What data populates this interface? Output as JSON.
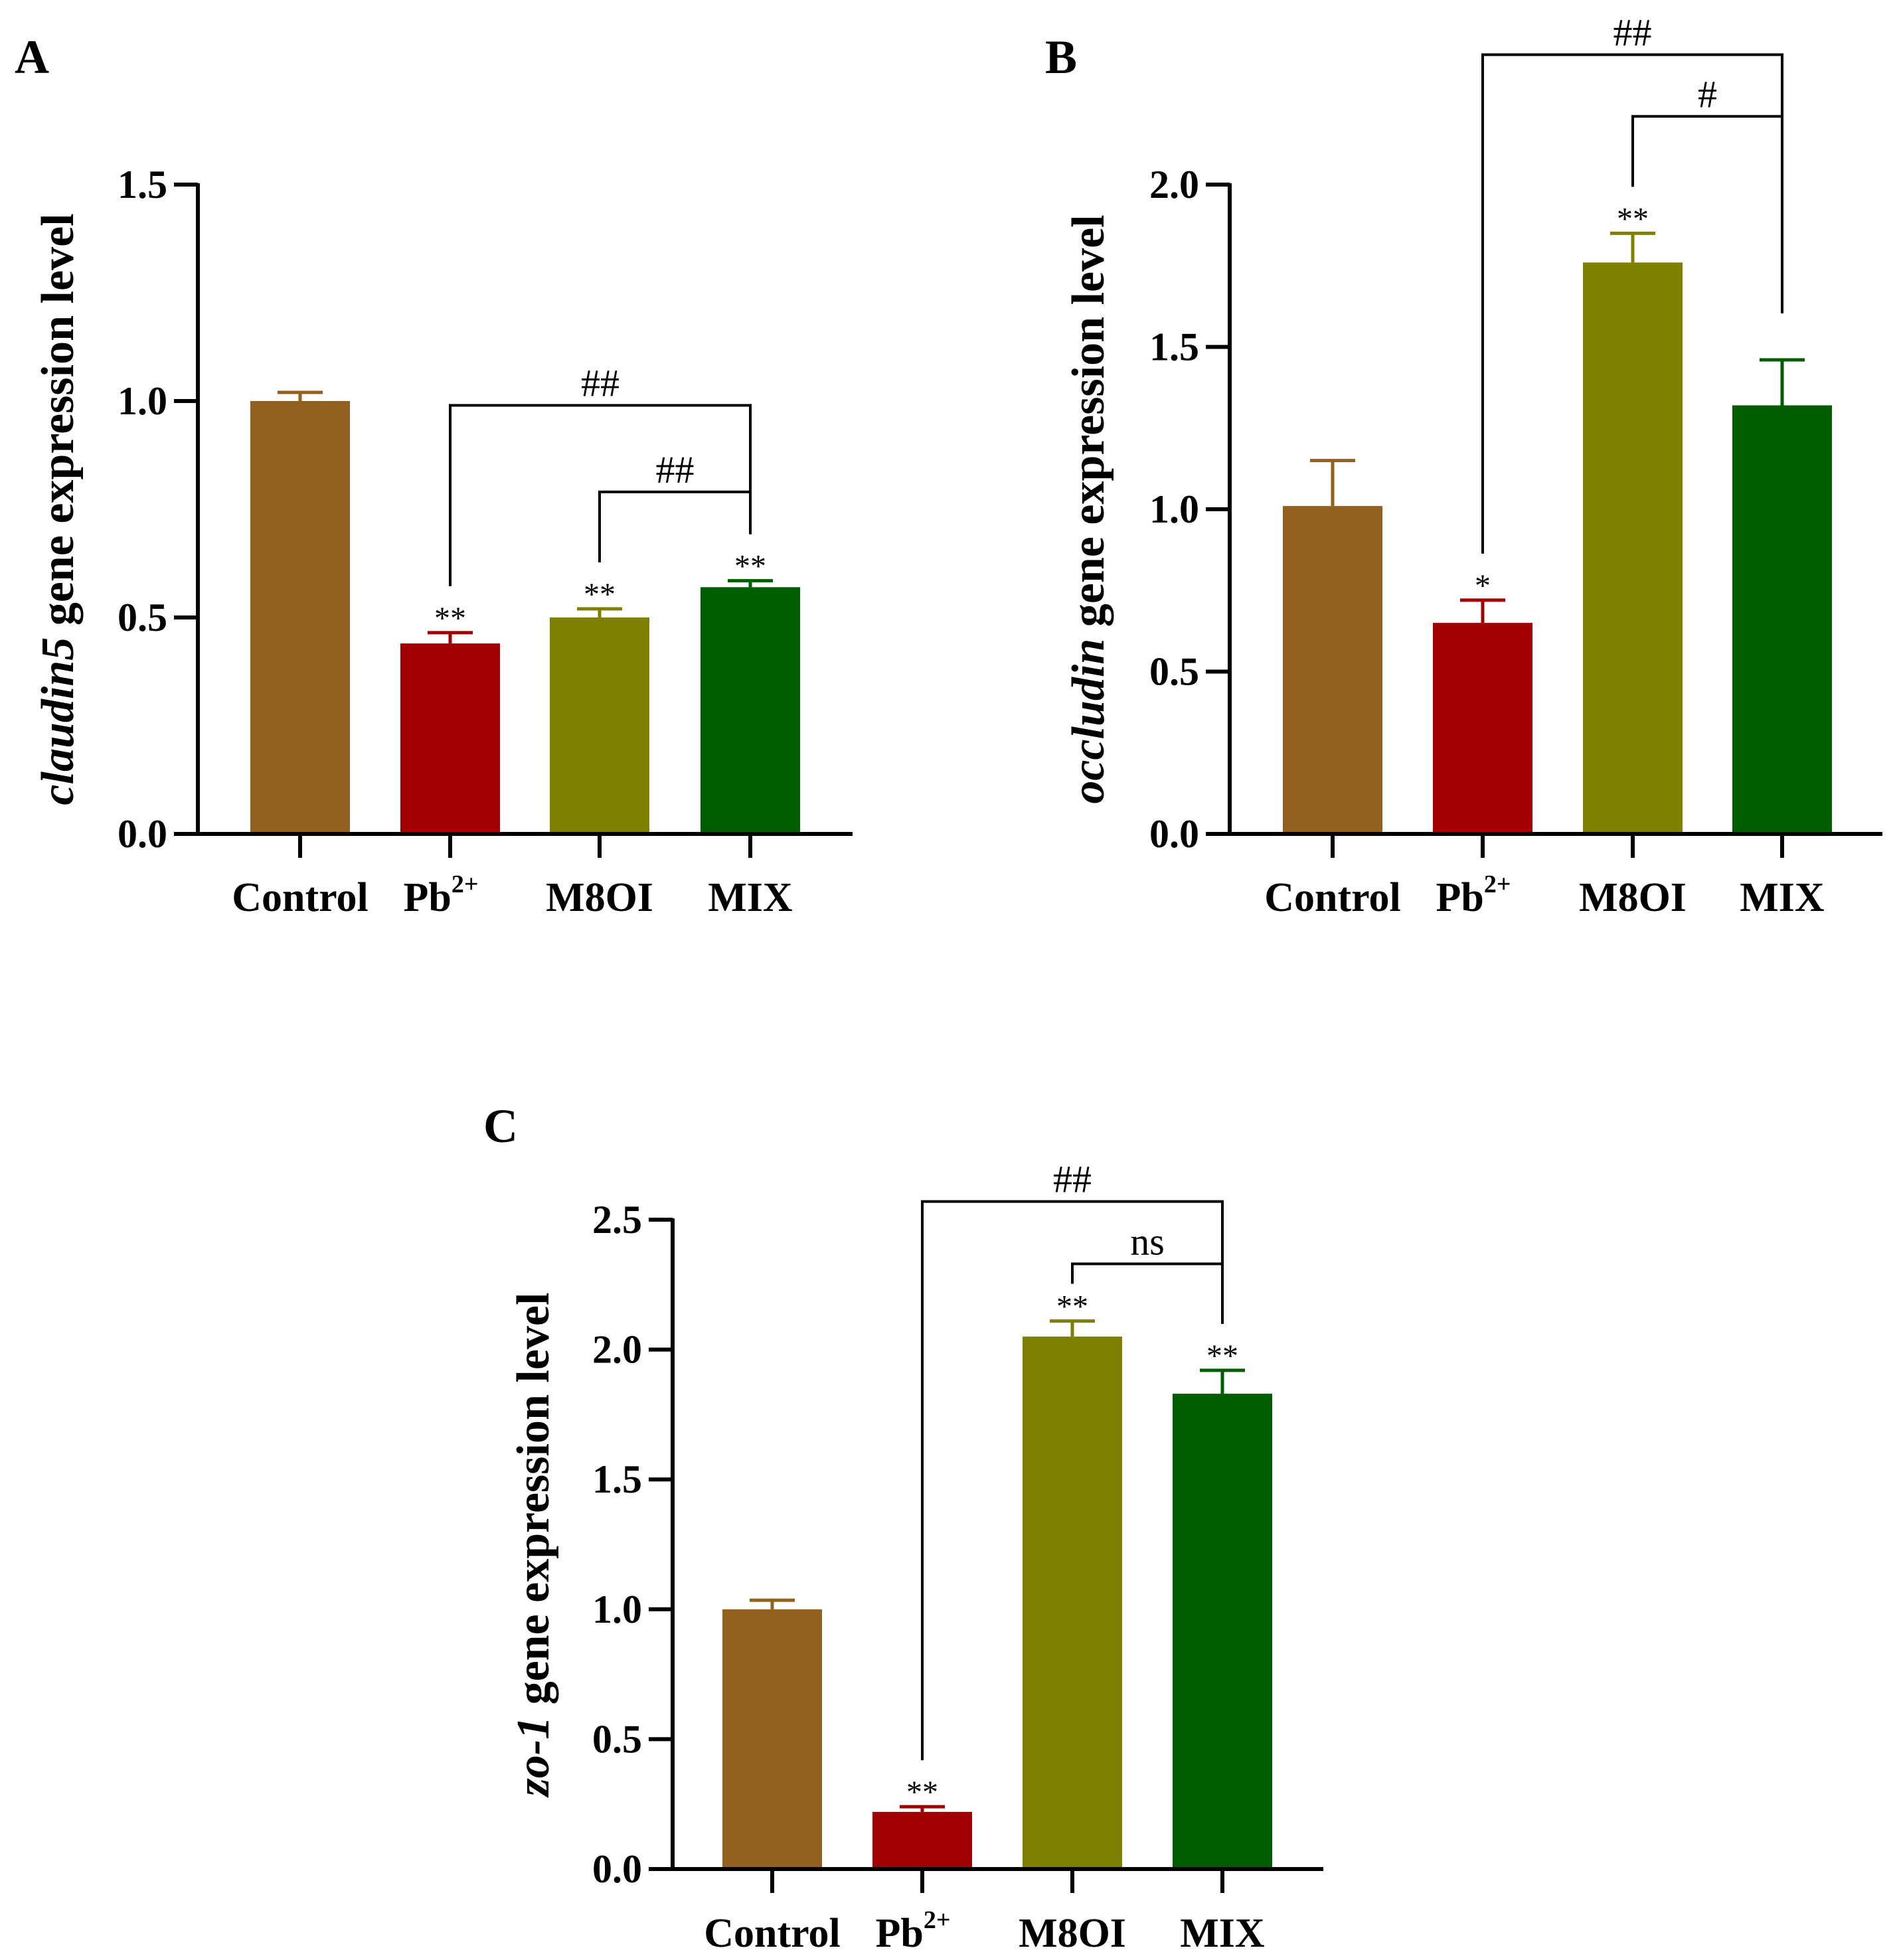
{
  "chart_data": [
    {
      "type": "bar",
      "panel": "A",
      "ylabel_gene": "claudin5",
      "ylabel_rest": " gene expression level",
      "ylim": [
        0,
        1.5
      ],
      "yticks": [
        0.0,
        0.5,
        1.0,
        1.5
      ],
      "ytick_labels": [
        "0.0",
        "0.5",
        "1.0",
        "1.5"
      ],
      "categories": [
        "Control",
        "Pb",
        "M8OI",
        "MIX"
      ],
      "category_superscripts": [
        "",
        "2+",
        "",
        ""
      ],
      "values": [
        1.0,
        0.44,
        0.5,
        0.57
      ],
      "errors": [
        0.02,
        0.025,
        0.02,
        0.015
      ],
      "colors": [
        "#92611F",
        "#A10000",
        "#808000",
        "#005E00"
      ],
      "significance": [
        "",
        "**",
        "**",
        "**"
      ],
      "comparisons": [
        {
          "from": 1,
          "to": 3,
          "label": "##",
          "level": 0.99
        },
        {
          "from": 2,
          "to": 3,
          "label": "##",
          "level": 0.79
        }
      ]
    },
    {
      "type": "bar",
      "panel": "B",
      "ylabel_gene": "occludin",
      "ylabel_rest": " gene expression level",
      "ylim": [
        0,
        2.0
      ],
      "yticks": [
        0.0,
        0.5,
        1.0,
        1.5,
        2.0
      ],
      "ytick_labels": [
        "0.0",
        "0.5",
        "1.0",
        "1.5",
        "2.0"
      ],
      "categories": [
        "Control",
        "Pb",
        "M8OI",
        "MIX"
      ],
      "category_superscripts": [
        "",
        "2+",
        "",
        ""
      ],
      "values": [
        1.01,
        0.65,
        1.76,
        1.32
      ],
      "errors": [
        0.14,
        0.07,
        0.09,
        0.14
      ],
      "colors": [
        "#92611F",
        "#A10000",
        "#808000",
        "#005E00"
      ],
      "significance": [
        "",
        "*",
        "**",
        ""
      ],
      "comparisons": [
        {
          "from": 1,
          "to": 3,
          "label": "##",
          "level": 2.4
        },
        {
          "from": 2,
          "to": 3,
          "label": "#",
          "level": 2.21
        }
      ]
    },
    {
      "type": "bar",
      "panel": "C",
      "ylabel_gene": "zo-1",
      "ylabel_rest": " gene expression level",
      "ylim": [
        0,
        2.5
      ],
      "yticks": [
        0.0,
        0.5,
        1.0,
        1.5,
        2.0,
        2.5
      ],
      "ytick_labels": [
        "0.0",
        "0.5",
        "1.0",
        "1.5",
        "2.0",
        "2.5"
      ],
      "categories": [
        "Control",
        "Pb",
        "M8OI",
        "MIX"
      ],
      "category_superscripts": [
        "",
        "2+",
        "",
        ""
      ],
      "values": [
        1.0,
        0.22,
        2.05,
        1.83
      ],
      "errors": [
        0.035,
        0.02,
        0.06,
        0.09
      ],
      "colors": [
        "#92611F",
        "#A10000",
        "#808000",
        "#005E00"
      ],
      "significance": [
        "",
        "**",
        "**",
        "**"
      ],
      "comparisons": [
        {
          "from": 1,
          "to": 3,
          "label": "##",
          "level": 2.57
        },
        {
          "from": 2,
          "to": 3,
          "label": "ns",
          "level": 2.33
        }
      ]
    }
  ]
}
